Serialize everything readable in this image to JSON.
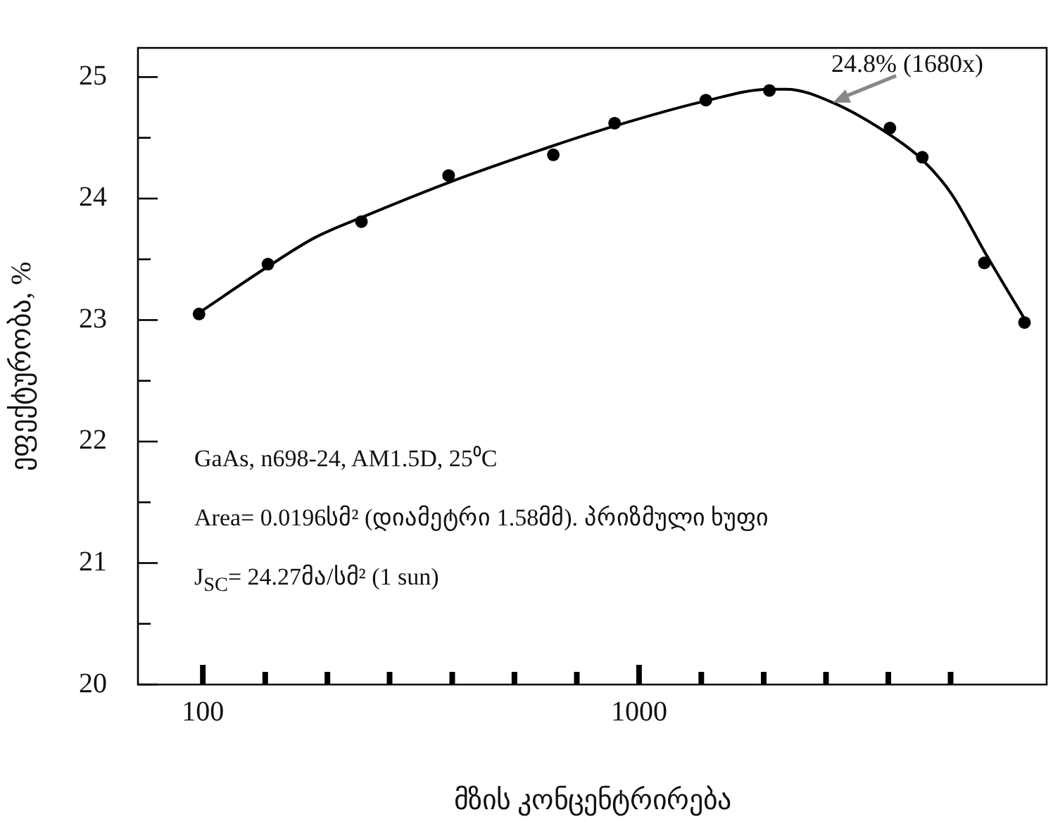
{
  "chart_data": {
    "type": "scatter",
    "xlabel": "მზის კონცენტრირება",
    "ylabel": "ეფექტურობა, %",
    "log": "x",
    "xlim": [
      71,
      8600
    ],
    "xticks": [
      100,
      {
        "value": 139,
        "label": null
      },
      {
        "value": 193,
        "label": null
      },
      {
        "value": 268,
        "label": null
      },
      {
        "value": 373,
        "label": null
      },
      {
        "value": 518,
        "label": null
      },
      {
        "value": 720,
        "label": null
      },
      1000,
      {
        "value": 1389,
        "label": null
      },
      {
        "value": 1931,
        "label": null
      },
      {
        "value": 2683,
        "label": null
      },
      {
        "value": 3728,
        "label": null
      },
      {
        "value": 5179,
        "label": null
      }
    ],
    "ylim": [
      20,
      25.24
    ],
    "yticks": [
      20,
      {
        "value": 20.5,
        "label": null
      },
      21,
      {
        "value": 21.5,
        "label": null
      },
      22,
      {
        "value": 22.5,
        "label": null
      },
      23,
      {
        "value": 23.5,
        "label": null
      },
      24,
      {
        "value": 24.5,
        "label": null
      },
      25
    ],
    "marker": "circle",
    "series": [
      {
        "type": "scatter",
        "color": "#000000",
        "x": [
          98,
          141,
          231,
          366,
          636,
          879,
          1423,
          1990,
          3760,
          4460,
          6190,
          7650
        ],
        "values": [
          23.05,
          23.46,
          23.81,
          24.19,
          24.36,
          24.62,
          24.81,
          24.89,
          24.58,
          24.34,
          23.47,
          22.98
        ]
      },
      {
        "type": "line",
        "color": "#000000",
        "marker": "none",
        "line_style": "solid",
        "x": [
          98,
          141,
          181,
          233,
          371,
          630,
          885,
          1409,
          1985,
          2178,
          2780,
          3812,
          4460,
          5200,
          6270,
          7650
        ],
        "values": [
          23.06,
          23.44,
          23.68,
          23.85,
          24.14,
          24.43,
          24.6,
          24.8,
          24.9,
          24.9,
          24.79,
          24.51,
          24.32,
          24.04,
          23.53,
          23.01
        ]
      }
    ],
    "annotations": [
      {
        "text": "24.8% (1680x)",
        "x": 2780,
        "y": 24.79
      },
      "GaAs, n698-24, AM1.5D, 25⁰C",
      "Area= 0.0196სმ² (დიამეტრი 1.58მმ). პრიზმული ხუფი",
      "J$_{SC}$= 24.27მა/სმ² (1 sun)"
    ]
  }
}
